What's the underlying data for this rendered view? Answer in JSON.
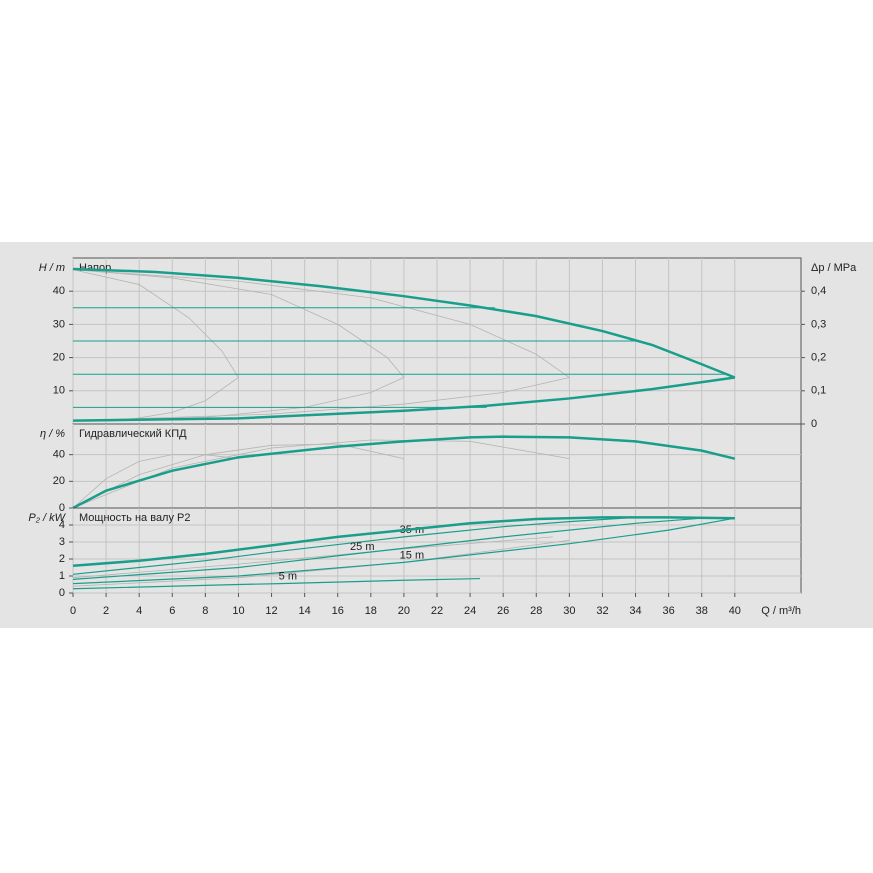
{
  "chart_data": [
    {
      "type": "line",
      "title": "Напор",
      "ylabel": "H / m",
      "y2label": "Δp / MPa",
      "xlim": [
        0,
        44
      ],
      "ylim": [
        0,
        50
      ],
      "yticks": [
        10,
        20,
        30,
        40
      ],
      "y2lim": [
        0,
        0.5
      ],
      "y2ticks": [
        0,
        {
          "value": 0.1,
          "label": "0,1"
        },
        {
          "value": 0.2,
          "label": "0,2"
        },
        {
          "value": 0.3,
          "label": "0,3"
        },
        {
          "value": 0.4,
          "label": "0,4"
        }
      ],
      "grid": true,
      "series": [
        {
          "color": "#b4b4b4",
          "linewidth": 0.8,
          "x": [
            0,
            4,
            7,
            9,
            10
          ],
          "values": [
            46.5,
            42,
            32,
            22,
            14
          ]
        },
        {
          "color": "#b4b4b4",
          "linewidth": 0.8,
          "x": [
            0,
            6,
            12,
            16,
            19,
            20
          ],
          "values": [
            46.5,
            44,
            39,
            30,
            20,
            14
          ]
        },
        {
          "color": "#b4b4b4",
          "linewidth": 0.8,
          "x": [
            0,
            10,
            18,
            24,
            28,
            30
          ],
          "values": [
            46.5,
            43,
            38,
            30,
            21,
            14
          ]
        },
        {
          "color": "#b4b4b4",
          "linewidth": 0.8,
          "x": [
            3,
            6,
            8,
            10
          ],
          "values": [
            1,
            3.5,
            7,
            14
          ]
        },
        {
          "color": "#b4b4b4",
          "linewidth": 0.8,
          "x": [
            0,
            8,
            14,
            18,
            20
          ],
          "values": [
            1,
            2,
            5,
            9.5,
            14
          ]
        },
        {
          "color": "#b4b4b4",
          "linewidth": 0.8,
          "x": [
            0,
            12,
            20,
            26,
            30
          ],
          "values": [
            1,
            3,
            6,
            9.5,
            14
          ]
        },
        {
          "color": "#1a9e8c",
          "linewidth": 1,
          "x": [
            0,
            25.5
          ],
          "values": [
            35,
            35
          ]
        },
        {
          "color": "#1a9e8c",
          "linewidth": 1,
          "x": [
            0,
            34
          ],
          "values": [
            25,
            25
          ]
        },
        {
          "color": "#1a9e8c",
          "linewidth": 1,
          "x": [
            0,
            39.5
          ],
          "values": [
            15,
            15
          ]
        },
        {
          "color": "#1a9e8c",
          "linewidth": 1,
          "x": [
            0,
            25
          ],
          "values": [
            5,
            5
          ]
        },
        {
          "color": "#1a9e8c",
          "linewidth": 2.5,
          "x": [
            0,
            5,
            10,
            15,
            20,
            24,
            28,
            32,
            35,
            38,
            40
          ],
          "values": [
            46.7,
            45.8,
            44,
            41.5,
            38.5,
            35.7,
            32.5,
            28,
            23.8,
            18,
            14
          ]
        },
        {
          "color": "#1a9e8c",
          "linewidth": 2.5,
          "x": [
            0,
            10,
            20,
            25,
            30,
            35,
            40
          ],
          "values": [
            1,
            1.7,
            4,
            5.5,
            7.7,
            10.5,
            14
          ]
        }
      ]
    },
    {
      "type": "line",
      "title": "Гидравлический КПД",
      "ylabel": "η / %",
      "xlim": [
        0,
        44
      ],
      "ylim": [
        0,
        63
      ],
      "yticks": [
        0,
        20,
        40
      ],
      "grid": true,
      "series": [
        {
          "color": "#b4b4b4",
          "linewidth": 0.8,
          "x": [
            0,
            2,
            4,
            6,
            8,
            10
          ],
          "values": [
            0,
            22,
            35,
            40,
            40,
            37
          ]
        },
        {
          "color": "#b4b4b4",
          "linewidth": 0.8,
          "x": [
            0,
            4,
            8,
            12,
            16,
            20
          ],
          "values": [
            0,
            25,
            40,
            47,
            48,
            37
          ]
        },
        {
          "color": "#b4b4b4",
          "linewidth": 0.8,
          "x": [
            0,
            6,
            12,
            18,
            24,
            30
          ],
          "values": [
            0,
            30,
            45,
            51,
            50,
            37
          ]
        },
        {
          "color": "#1a9e8c",
          "linewidth": 2.5,
          "x": [
            0,
            2,
            6,
            10,
            16,
            20,
            24,
            26,
            30,
            34,
            38,
            40
          ],
          "values": [
            0,
            13,
            28,
            38,
            46,
            50,
            53,
            53.5,
            53,
            50,
            43,
            37
          ]
        }
      ]
    },
    {
      "type": "line",
      "title": "Мощность на валу P2",
      "ylabel": "P₂ / kW",
      "xlabel": "Q / m³/h",
      "xlim": [
        0,
        44
      ],
      "ylim": [
        0,
        5
      ],
      "yticks": [
        0,
        1,
        2,
        3,
        4
      ],
      "xticks": [
        0,
        2,
        4,
        6,
        8,
        10,
        12,
        14,
        16,
        18,
        20,
        22,
        24,
        26,
        28,
        30,
        32,
        34,
        36,
        38,
        40
      ],
      "grid": true,
      "series": [
        {
          "color": "#b4b4b4",
          "linewidth": 0.8,
          "x": [
            0,
            10,
            20,
            29
          ],
          "values": [
            0.9,
            1.7,
            2.6,
            3.3
          ]
        },
        {
          "color": "#b4b4b4",
          "linewidth": 0.8,
          "x": [
            0,
            10,
            20,
            30
          ],
          "values": [
            0.4,
            0.9,
            1.8,
            3.1
          ]
        },
        {
          "name": "35 m",
          "color": "#1a9e8c",
          "linewidth": 1.2,
          "x": [
            0,
            8,
            12,
            20,
            26,
            30,
            34
          ],
          "values": [
            1.1,
            1.9,
            2.4,
            3.3,
            3.9,
            4.2,
            4.45
          ]
        },
        {
          "name": "25 m",
          "color": "#1a9e8c",
          "linewidth": 1.2,
          "x": [
            0,
            10,
            17,
            26,
            34,
            38
          ],
          "values": [
            0.8,
            1.5,
            2.3,
            3.3,
            4.1,
            4.4
          ]
        },
        {
          "name": "15 m",
          "color": "#1a9e8c",
          "linewidth": 1.2,
          "x": [
            0,
            10,
            20,
            30,
            36,
            40
          ],
          "values": [
            0.55,
            1.0,
            1.8,
            2.9,
            3.7,
            4.4
          ]
        },
        {
          "name": "5 m",
          "color": "#1a9e8c",
          "linewidth": 1.2,
          "x": [
            0,
            10,
            12.5,
            20,
            24.6
          ],
          "values": [
            0.25,
            0.5,
            0.55,
            0.75,
            0.85
          ]
        },
        {
          "color": "#1a9e8c",
          "linewidth": 2.5,
          "x": [
            0,
            4,
            8,
            12,
            16,
            20,
            24,
            28,
            32,
            36,
            40
          ],
          "values": [
            1.6,
            1.9,
            2.3,
            2.8,
            3.3,
            3.7,
            4.1,
            4.35,
            4.45,
            4.45,
            4.4
          ]
        }
      ]
    }
  ]
}
